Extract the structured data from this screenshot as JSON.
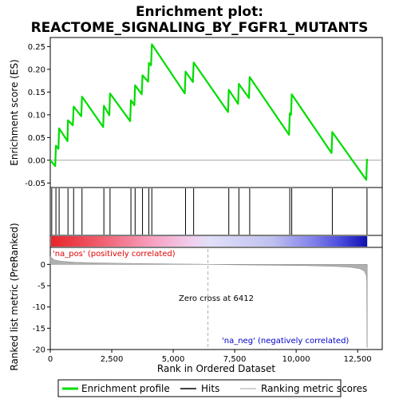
{
  "chart_data": {
    "type": "line",
    "title_line1": "Enrichment plot:",
    "title_line2": "REACTOME_SIGNALING_BY_FGFR1_MUTANTS",
    "xlabel": "Rank in Ordered Dataset",
    "ylabel_top": "Enrichment score (ES)",
    "ylabel_bottom": "Ranked list metric (PreRanked)",
    "xlim": [
      0,
      13500
    ],
    "x_ticks": [
      0,
      2500,
      5000,
      7500,
      10000,
      12500
    ],
    "x_tick_labels": [
      "0",
      "2,500",
      "5,000",
      "7,500",
      "10,000",
      "12,500"
    ],
    "es_ylim": [
      -0.06,
      0.27
    ],
    "es_ticks": [
      -0.05,
      0.0,
      0.05,
      0.1,
      0.15,
      0.2,
      0.25
    ],
    "es_tick_labels": [
      "-0.05",
      "0.00",
      "0.05",
      "0.10",
      "0.15",
      "0.20",
      "0.25"
    ],
    "metric_ylim": [
      -20,
      4
    ],
    "metric_ticks": [
      0,
      -5,
      -10,
      -15,
      -20
    ],
    "metric_tick_labels": [
      "0",
      "-5",
      "-10",
      "-15",
      "-20"
    ],
    "enrichment_profile": [
      [
        0,
        0.0
      ],
      [
        200,
        -0.013
      ],
      [
        230,
        0.032
      ],
      [
        330,
        0.025
      ],
      [
        360,
        0.07
      ],
      [
        700,
        0.042
      ],
      [
        720,
        0.088
      ],
      [
        920,
        0.077
      ],
      [
        950,
        0.118
      ],
      [
        1260,
        0.097
      ],
      [
        1290,
        0.14
      ],
      [
        2150,
        0.073
      ],
      [
        2180,
        0.12
      ],
      [
        2400,
        0.099
      ],
      [
        2430,
        0.147
      ],
      [
        3250,
        0.086
      ],
      [
        3280,
        0.132
      ],
      [
        3420,
        0.121
      ],
      [
        3450,
        0.165
      ],
      [
        3720,
        0.145
      ],
      [
        3750,
        0.187
      ],
      [
        3980,
        0.173
      ],
      [
        4010,
        0.214
      ],
      [
        4100,
        0.209
      ],
      [
        4130,
        0.255
      ],
      [
        5470,
        0.147
      ],
      [
        5500,
        0.195
      ],
      [
        5800,
        0.172
      ],
      [
        5830,
        0.215
      ],
      [
        7230,
        0.106
      ],
      [
        7260,
        0.155
      ],
      [
        7640,
        0.124
      ],
      [
        7670,
        0.168
      ],
      [
        8080,
        0.137
      ],
      [
        8110,
        0.183
      ],
      [
        9710,
        0.056
      ],
      [
        9740,
        0.103
      ],
      [
        9790,
        0.1
      ],
      [
        9820,
        0.145
      ],
      [
        11440,
        0.016
      ],
      [
        11470,
        0.062
      ],
      [
        12850,
        -0.043
      ],
      [
        12880,
        0.003
      ]
    ],
    "hits": [
      60,
      230,
      360,
      720,
      950,
      1290,
      2180,
      2430,
      3280,
      3450,
      3750,
      4010,
      4130,
      5500,
      5830,
      7260,
      7670,
      8110,
      9740,
      9820,
      11470,
      12880
    ],
    "metric_profile": [
      [
        0,
        1.8
      ],
      [
        150,
        1.1
      ],
      [
        400,
        0.75
      ],
      [
        1000,
        0.5
      ],
      [
        2000,
        0.35
      ],
      [
        3000,
        0.25
      ],
      [
        4000,
        0.18
      ],
      [
        5000,
        0.1
      ],
      [
        6000,
        0.04
      ],
      [
        6412,
        0.0
      ],
      [
        7500,
        -0.08
      ],
      [
        9000,
        -0.18
      ],
      [
        10500,
        -0.3
      ],
      [
        11500,
        -0.45
      ],
      [
        12200,
        -0.65
      ],
      [
        12600,
        -1.0
      ],
      [
        12780,
        -1.6
      ],
      [
        12850,
        -2.6
      ],
      [
        12870,
        -4.0
      ],
      [
        12880,
        -19.5
      ],
      [
        12890,
        -19.5
      ]
    ],
    "pos_label": "'na_pos' (positively correlated)",
    "neg_label": "'na_neg' (negatively correlated)",
    "zero_cross_label": "Zero cross at 6412",
    "zero_cross": 6412,
    "dataset_size": 12890,
    "colors": {
      "es_line": "#00dd00",
      "hit_line": "#000000",
      "metric_fill": "#b0b0b0",
      "zero_cross_line": "#b0b0b0",
      "pos_text": "#dd0000",
      "neg_text": "#0000cc",
      "heat_stops": [
        "#e8242a",
        "#f06070",
        "#f8a0c0",
        "#f0d0f0",
        "#e0e0f8",
        "#c0c0f0",
        "#8080ea",
        "#4848dc",
        "#1010b0"
      ]
    },
    "legend": [
      "Enrichment profile",
      "Hits",
      "Ranking metric scores"
    ]
  }
}
